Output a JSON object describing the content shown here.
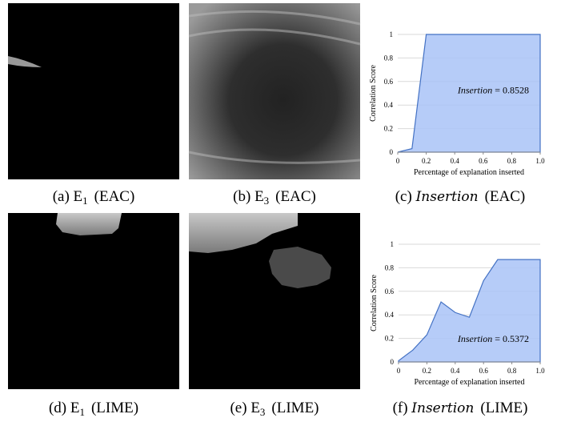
{
  "chart_data": [
    {
      "type": "area",
      "x_label": "Percentage of explanation inserted",
      "y_label": "Correlation Score",
      "x": [
        0,
        0.1,
        0.2,
        0.3,
        0.4,
        0.5,
        0.6,
        0.7,
        0.8,
        0.9,
        1.0
      ],
      "values": [
        0,
        0.03,
        1,
        1,
        1,
        1,
        1,
        1,
        1,
        1,
        1
      ],
      "color": "#4472c4",
      "fill": "#a9c3f7",
      "xlim": [
        0,
        1
      ],
      "ylim": [
        0,
        1
      ],
      "xticks": [
        0,
        0.2,
        0.4,
        0.6,
        0.8,
        {
          "value": 1,
          "label": "1.0"
        }
      ],
      "yticks": [
        0,
        0.2,
        0.4,
        0.6,
        0.8,
        1
      ],
      "grid": true,
      "annotation": [
        "Insertion",
        " = 0.8528"
      ]
    },
    {
      "type": "area",
      "x_label": "Percentage of explanation inserted",
      "y_label": "Correlation Score",
      "x": [
        0,
        0.1,
        0.2,
        0.3,
        0.4,
        0.5,
        0.6,
        0.7,
        0.8,
        0.9,
        1.0
      ],
      "values": [
        0.01,
        0.1,
        0.23,
        0.51,
        0.42,
        0.38,
        0.69,
        0.87,
        0.87,
        0.87,
        0.87
      ],
      "color": "#4472c4",
      "fill": "#a9c3f7",
      "xlim": [
        0,
        1
      ],
      "ylim": [
        0,
        1
      ],
      "xticks": [
        0,
        0.2,
        0.4,
        0.6,
        0.8,
        {
          "value": 1,
          "label": "1.0"
        }
      ],
      "yticks": [
        0,
        0.2,
        0.4,
        0.6,
        0.8,
        1
      ],
      "grid": true,
      "annotation": [
        "Insertion",
        " = 0.5372"
      ]
    }
  ],
  "captions": [
    {
      "label": "(a)",
      "name": "E",
      "sub": "1",
      "method": "(EAC)"
    },
    {
      "label": "(b)",
      "name": "E",
      "sub": "3",
      "method": "(EAC)"
    },
    {
      "label": "(c)",
      "name": "Insertion",
      "method": "(EAC)"
    },
    {
      "label": "(d)",
      "name": "E",
      "sub": "1",
      "method": "(LIME)"
    },
    {
      "label": "(e)",
      "name": "E",
      "sub": "3",
      "method": "(LIME)"
    },
    {
      "label": "(f)",
      "name": "Insertion",
      "method": "(LIME)"
    }
  ]
}
